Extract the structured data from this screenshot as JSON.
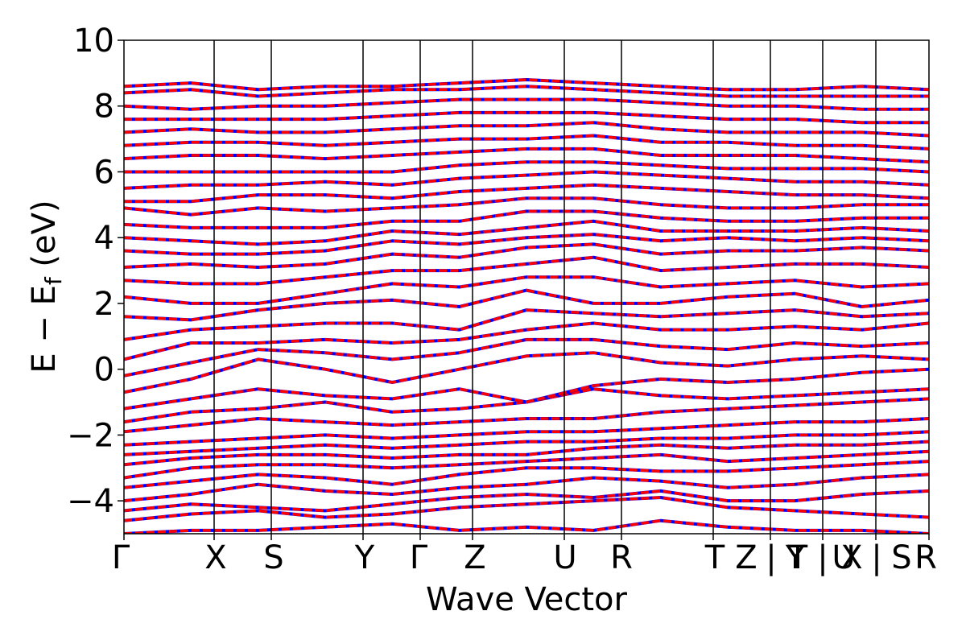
{
  "chart_data": {
    "type": "line",
    "title": "",
    "xlabel": "Wave Vector",
    "ylabel": "E − E",
    "ylabel_sub": "f",
    "ylabel_unit": " (eV)",
    "ylim": [
      -5,
      10
    ],
    "y_ticks": [
      -4,
      -2,
      0,
      2,
      4,
      6,
      8,
      10
    ],
    "y_tick_labels": [
      "−4",
      "−2",
      "0",
      "2",
      "4",
      "6",
      "8",
      "10"
    ],
    "x_ticks": [
      {
        "label": "Γ",
        "x": 0.0
      },
      {
        "label": "X",
        "x": 0.112
      },
      {
        "label": "S",
        "x": 0.183
      },
      {
        "label": "Y",
        "x": 0.297
      },
      {
        "label": "Γ",
        "x": 0.368
      },
      {
        "label": "Z",
        "x": 0.433
      },
      {
        "label": "U",
        "x": 0.547
      },
      {
        "label": "R",
        "x": 0.618
      },
      {
        "label": "T",
        "x": 0.732
      },
      {
        "label": "Z|Y",
        "x": 0.803
      },
      {
        "label": "T|U",
        "x": 0.868
      },
      {
        "label": "X|S",
        "x": 0.934
      },
      {
        "label": "R",
        "x": 1.0
      }
    ],
    "x_tick_text": [
      "Γ",
      "X",
      "S",
      "Y",
      "Γ",
      "Z",
      "U",
      "R",
      "T",
      "Z",
      "|",
      "Y",
      "T",
      "|",
      "U",
      "X",
      "|",
      "S",
      "R"
    ],
    "segment_boundaries": [
      0.112,
      0.183,
      0.297,
      0.368,
      0.433,
      0.547,
      0.618,
      0.732,
      0.803,
      0.868,
      0.934
    ],
    "series_colors": {
      "bands_a": "#ff0000",
      "bands_b": "#0000ff"
    },
    "bands": [
      [
        -5.0,
        -4.9,
        -4.9,
        -4.8,
        -4.7,
        -4.9,
        -4.8,
        -4.9,
        -4.6,
        -4.8,
        -4.9,
        -4.9,
        -5.0
      ],
      [
        -4.6,
        -4.4,
        -4.3,
        -4.5,
        -4.4,
        -4.2,
        -4.1,
        -4.0,
        -3.9,
        -4.2,
        -4.3,
        -4.4,
        -4.5
      ],
      [
        -4.3,
        -4.1,
        -4.2,
        -4.3,
        -4.1,
        -3.9,
        -3.8,
        -3.9,
        -3.7,
        -4.0,
        -4.0,
        -3.8,
        -3.7
      ],
      [
        -4.0,
        -3.8,
        -3.5,
        -3.7,
        -3.8,
        -3.6,
        -3.5,
        -3.3,
        -3.4,
        -3.6,
        -3.5,
        -3.3,
        -3.2
      ],
      [
        -3.6,
        -3.4,
        -3.2,
        -3.3,
        -3.5,
        -3.2,
        -3.0,
        -3.0,
        -3.1,
        -3.1,
        -3.0,
        -2.9,
        -2.8
      ],
      [
        -3.3,
        -3.0,
        -2.9,
        -2.9,
        -3.0,
        -2.9,
        -2.8,
        -2.7,
        -2.6,
        -2.8,
        -2.7,
        -2.6,
        -2.5
      ],
      [
        -2.9,
        -2.7,
        -2.6,
        -2.6,
        -2.7,
        -2.6,
        -2.6,
        -2.4,
        -2.3,
        -2.4,
        -2.3,
        -2.3,
        -2.2
      ],
      [
        -2.6,
        -2.5,
        -2.4,
        -2.3,
        -2.4,
        -2.3,
        -2.2,
        -2.2,
        -2.1,
        -2.1,
        -2.0,
        -2.0,
        -1.9
      ],
      [
        -2.3,
        -2.2,
        -2.1,
        -2.0,
        -2.1,
        -2.0,
        -1.9,
        -1.9,
        -1.8,
        -1.7,
        -1.6,
        -1.6,
        -1.5
      ],
      [
        -1.9,
        -1.7,
        -1.5,
        -1.6,
        -1.7,
        -1.6,
        -1.5,
        -1.5,
        -1.3,
        -1.2,
        -1.1,
        -1.0,
        -0.9
      ],
      [
        -1.6,
        -1.3,
        -1.2,
        -1.0,
        -1.3,
        -1.2,
        -1.0,
        -0.6,
        -0.8,
        -0.9,
        -0.8,
        -0.7,
        -0.6
      ],
      [
        -1.2,
        -0.9,
        -0.6,
        -0.8,
        -0.9,
        -0.6,
        -1.0,
        -0.5,
        -0.3,
        -0.4,
        -0.3,
        -0.1,
        0.0
      ],
      [
        -0.7,
        -0.3,
        0.3,
        0.0,
        -0.4,
        0.0,
        0.4,
        0.5,
        0.2,
        0.1,
        0.3,
        0.4,
        0.3
      ],
      [
        -0.2,
        0.2,
        0.6,
        0.5,
        0.3,
        0.5,
        0.9,
        0.9,
        0.7,
        0.6,
        0.8,
        0.7,
        0.8
      ],
      [
        0.3,
        0.8,
        0.8,
        0.9,
        0.8,
        0.9,
        1.2,
        1.4,
        1.2,
        1.2,
        1.3,
        1.2,
        1.4
      ],
      [
        0.9,
        1.2,
        1.3,
        1.4,
        1.4,
        1.2,
        1.8,
        1.7,
        1.6,
        1.7,
        1.8,
        1.6,
        1.7
      ],
      [
        1.6,
        1.5,
        1.8,
        2.0,
        2.1,
        1.9,
        2.4,
        2.0,
        2.0,
        2.2,
        2.3,
        1.9,
        2.1
      ],
      [
        2.2,
        2.0,
        2.0,
        2.3,
        2.6,
        2.5,
        2.8,
        2.8,
        2.5,
        2.6,
        2.7,
        2.5,
        2.6
      ],
      [
        2.7,
        2.6,
        2.6,
        2.8,
        3.0,
        3.0,
        3.2,
        3.4,
        3.0,
        3.1,
        3.2,
        3.2,
        3.1
      ],
      [
        3.1,
        3.2,
        3.1,
        3.2,
        3.5,
        3.4,
        3.7,
        3.8,
        3.5,
        3.6,
        3.6,
        3.7,
        3.6
      ],
      [
        3.6,
        3.5,
        3.5,
        3.6,
        3.9,
        3.8,
        4.0,
        4.1,
        3.9,
        4.0,
        3.9,
        4.0,
        3.9
      ],
      [
        4.0,
        3.9,
        3.8,
        3.9,
        4.2,
        4.1,
        4.3,
        4.5,
        4.2,
        4.2,
        4.2,
        4.3,
        4.2
      ],
      [
        4.4,
        4.3,
        4.3,
        4.3,
        4.5,
        4.5,
        4.8,
        4.8,
        4.6,
        4.5,
        4.5,
        4.6,
        4.6
      ],
      [
        4.9,
        4.7,
        4.9,
        4.8,
        4.9,
        5.0,
        5.2,
        5.2,
        5.0,
        4.9,
        4.9,
        5.0,
        5.0
      ],
      [
        5.1,
        5.1,
        5.3,
        5.3,
        5.2,
        5.4,
        5.5,
        5.6,
        5.5,
        5.4,
        5.3,
        5.3,
        5.2
      ],
      [
        5.5,
        5.6,
        5.6,
        5.7,
        5.6,
        5.8,
        5.9,
        6.0,
        5.9,
        5.8,
        5.7,
        5.7,
        5.6
      ],
      [
        6.0,
        6.0,
        6.0,
        6.0,
        6.0,
        6.2,
        6.3,
        6.3,
        6.2,
        6.1,
        6.1,
        6.1,
        6.0
      ],
      [
        6.4,
        6.5,
        6.5,
        6.4,
        6.5,
        6.6,
        6.7,
        6.7,
        6.5,
        6.5,
        6.5,
        6.4,
        6.3
      ],
      [
        6.8,
        6.9,
        6.9,
        6.8,
        6.9,
        7.0,
        7.0,
        7.1,
        6.9,
        6.9,
        6.8,
        6.8,
        6.7
      ],
      [
        7.2,
        7.3,
        7.2,
        7.2,
        7.3,
        7.4,
        7.4,
        7.5,
        7.3,
        7.2,
        7.2,
        7.2,
        7.1
      ],
      [
        7.6,
        7.6,
        7.6,
        7.6,
        7.7,
        7.8,
        7.8,
        7.8,
        7.7,
        7.6,
        7.6,
        7.5,
        7.5
      ],
      [
        8.0,
        7.9,
        8.0,
        8.0,
        8.1,
        8.2,
        8.2,
        8.2,
        8.1,
        8.0,
        8.0,
        7.9,
        7.9
      ],
      [
        8.4,
        8.5,
        8.3,
        8.4,
        8.5,
        8.5,
        8.6,
        8.5,
        8.4,
        8.3,
        8.3,
        8.3,
        8.3
      ],
      [
        8.6,
        8.7,
        8.5,
        8.6,
        8.6,
        8.7,
        8.8,
        8.7,
        8.6,
        8.5,
        8.5,
        8.6,
        8.5
      ]
    ]
  }
}
